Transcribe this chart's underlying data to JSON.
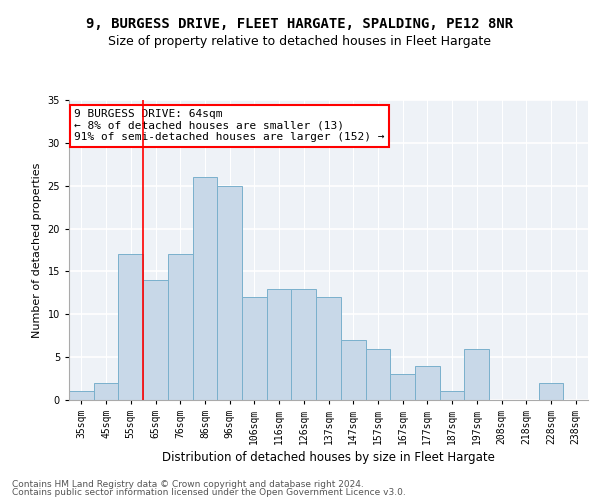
{
  "title1": "9, BURGESS DRIVE, FLEET HARGATE, SPALDING, PE12 8NR",
  "title2": "Size of property relative to detached houses in Fleet Hargate",
  "xlabel": "Distribution of detached houses by size in Fleet Hargate",
  "ylabel": "Number of detached properties",
  "footer1": "Contains HM Land Registry data © Crown copyright and database right 2024.",
  "footer2": "Contains public sector information licensed under the Open Government Licence v3.0.",
  "bar_labels": [
    "35sqm",
    "45sqm",
    "55sqm",
    "65sqm",
    "76sqm",
    "86sqm",
    "96sqm",
    "106sqm",
    "116sqm",
    "126sqm",
    "137sqm",
    "147sqm",
    "157sqm",
    "167sqm",
    "177sqm",
    "187sqm",
    "197sqm",
    "208sqm",
    "218sqm",
    "228sqm",
    "238sqm"
  ],
  "bar_values": [
    1,
    2,
    17,
    14,
    17,
    26,
    25,
    12,
    13,
    13,
    12,
    7,
    6,
    3,
    4,
    1,
    6,
    0,
    0,
    2,
    0
  ],
  "bar_color": "#c8d8e8",
  "bar_edgecolor": "#7ab0cc",
  "vline_x": 2.5,
  "vline_color": "red",
  "annotation_text": "9 BURGESS DRIVE: 64sqm\n← 8% of detached houses are smaller (13)\n91% of semi-detached houses are larger (152) →",
  "annotation_box_color": "white",
  "annotation_box_edgecolor": "red",
  "ylim": [
    0,
    35
  ],
  "yticks": [
    0,
    5,
    10,
    15,
    20,
    25,
    30,
    35
  ],
  "bg_color": "#eef2f7",
  "grid_color": "white",
  "title1_fontsize": 10,
  "title2_fontsize": 9,
  "xlabel_fontsize": 8.5,
  "ylabel_fontsize": 8,
  "tick_fontsize": 7,
  "footer_fontsize": 6.5,
  "annotation_fontsize": 8
}
